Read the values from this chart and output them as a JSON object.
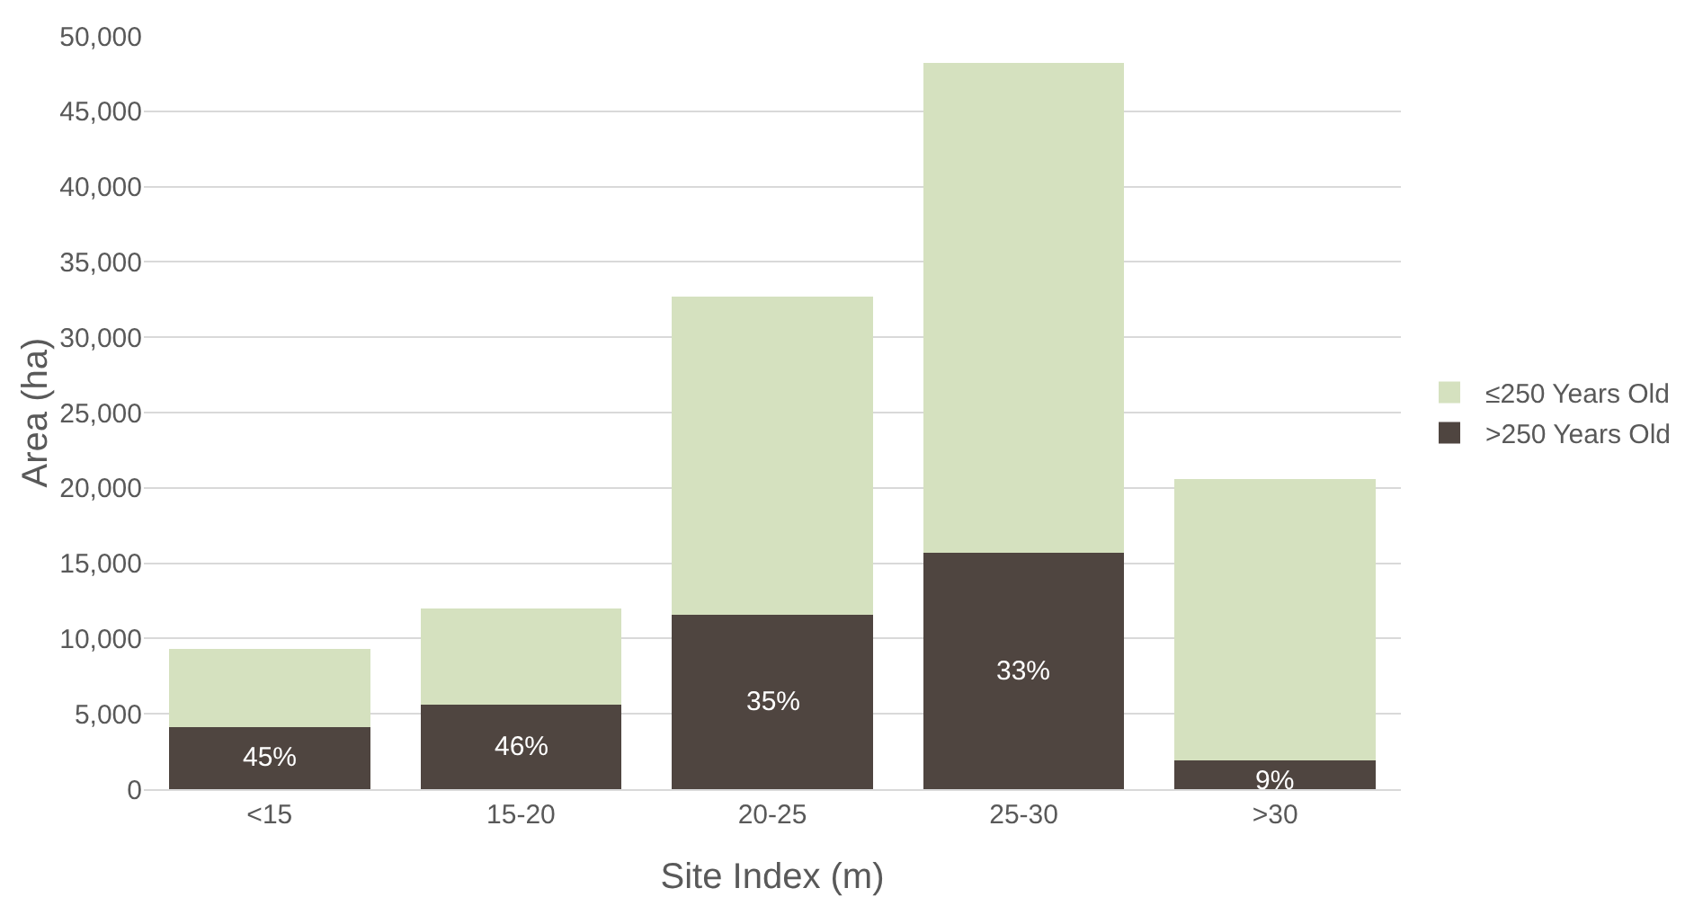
{
  "chart_data": {
    "type": "bar",
    "stacked": true,
    "xlabel": "Site Index (m)",
    "ylabel": "Area (ha)",
    "categories": [
      "<15",
      "15-20",
      "20-25",
      "25-30",
      ">30"
    ],
    "series": [
      {
        "name": ">250 Years Old",
        "color": "#4f4540",
        "values": [
          4100,
          5600,
          11600,
          15700,
          1900
        ]
      },
      {
        "name": "≤250 Years Old",
        "color": "#d5e1bf",
        "values": [
          5200,
          6400,
          21100,
          32500,
          18700
        ]
      }
    ],
    "ylim": [
      0,
      50000
    ],
    "yticks": [
      {
        "value": 0,
        "label": "0"
      },
      {
        "value": 5000,
        "label": "5,000"
      },
      {
        "value": 10000,
        "label": "10,000"
      },
      {
        "value": 15000,
        "label": "15,000"
      },
      {
        "value": 20000,
        "label": "20,000"
      },
      {
        "value": 25000,
        "label": "25,000"
      },
      {
        "value": 30000,
        "label": "30,000"
      },
      {
        "value": 35000,
        "label": "35,000"
      },
      {
        "value": 40000,
        "label": "40,000"
      },
      {
        "value": 45000,
        "label": "45,000"
      },
      {
        "value": 50000,
        "label": "50,000"
      }
    ],
    "annotations": [
      "45%",
      "46%",
      "35%",
      "33%",
      "9%"
    ],
    "grid": "y",
    "legend": "right"
  }
}
